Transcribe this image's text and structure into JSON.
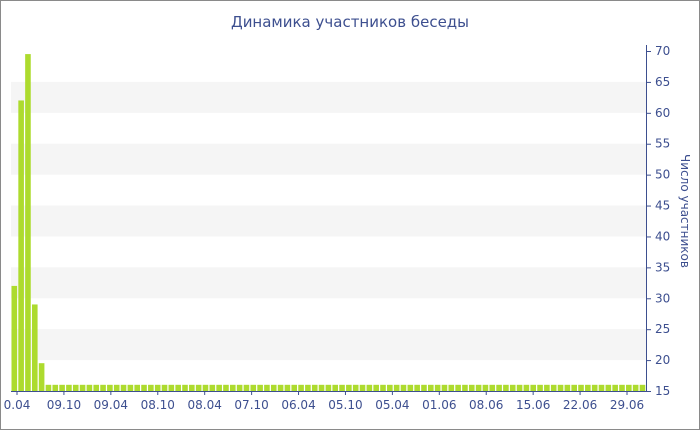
{
  "chart_data": {
    "type": "bar",
    "title": "Динамика участников беседы",
    "xlabel": "",
    "ylabel": "Число участников",
    "ylim": [
      15,
      70
    ],
    "y_ticks": [
      15,
      20,
      25,
      30,
      35,
      40,
      45,
      50,
      55,
      60,
      65,
      70
    ],
    "x_tick_labels": [
      "0.04",
      "09.10",
      "09.04",
      "08.10",
      "08.04",
      "07.10",
      "06.04",
      "05.10",
      "05.04",
      "01.06",
      "08.06",
      "15.06",
      "22.06",
      "29.06"
    ],
    "values": [
      32,
      62,
      69.5,
      29,
      19.5,
      16,
      16,
      16,
      16,
      16,
      16,
      16,
      16,
      16,
      16,
      16,
      16,
      16,
      16,
      16,
      16,
      16,
      16,
      16,
      16,
      16,
      16,
      16,
      16,
      16,
      16,
      16,
      16,
      16,
      16,
      16,
      16,
      16,
      16,
      16,
      16,
      16,
      16,
      16,
      16,
      16,
      16,
      16,
      16,
      16,
      16,
      16,
      16,
      16,
      16,
      16,
      16,
      16,
      16,
      16,
      16,
      16,
      16,
      16,
      16,
      16,
      16,
      16,
      16,
      16,
      16,
      16,
      16,
      16,
      16,
      16,
      16,
      16,
      16,
      16,
      16,
      16,
      16,
      16,
      16,
      16,
      16,
      16,
      16,
      16,
      16,
      16,
      16
    ],
    "bar_color": "#addb2e",
    "band_color": "#f5f5f5",
    "axis_text_color": "#3d4f8f",
    "y_axis_side": "right",
    "grid_bands": true
  }
}
